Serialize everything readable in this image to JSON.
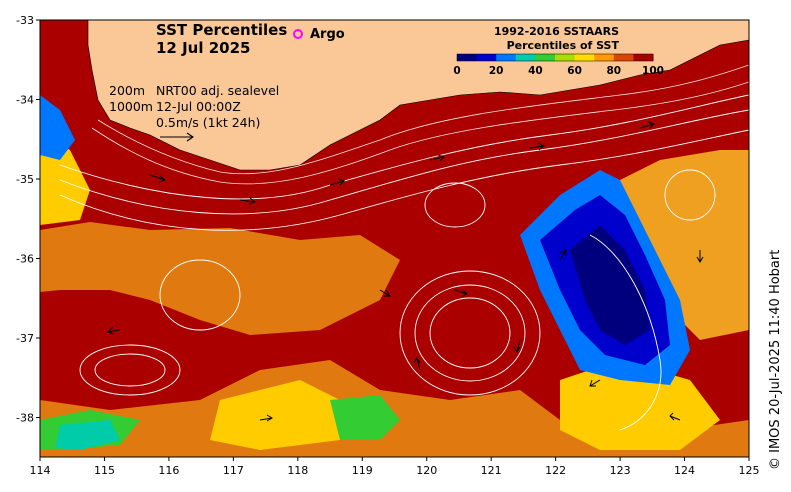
{
  "title": {
    "line1": "SST Percentiles",
    "line2": "12 Jul 2025"
  },
  "argo_legend": {
    "label": "Argo",
    "color": "#ff00ff"
  },
  "colorbar": {
    "title_line1": "1992-2016 SSTAARS",
    "title_line2": "Percentiles of SST",
    "ticks": [
      "0",
      "20",
      "40",
      "60",
      "80",
      "100"
    ],
    "colors": [
      "#00007f",
      "#0000cc",
      "#0077ff",
      "#00ccaa",
      "#33cc33",
      "#aadd00",
      "#ffdd00",
      "#ff9900",
      "#dd4400",
      "#aa0000"
    ]
  },
  "annotation": {
    "depth_200": "200m",
    "depth_1000": "1000m",
    "sealevel": "NRT00 adj. sealevel",
    "time": "12-Jul 00:00Z",
    "scale": "0.5m/s (1kt 24h)"
  },
  "x_ticks": [
    "114",
    "115",
    "116",
    "117",
    "118",
    "119",
    "120",
    "121",
    "122",
    "123",
    "124",
    "125"
  ],
  "y_ticks": [
    "-33",
    "-34",
    "-35",
    "-36",
    "-37",
    "-38"
  ],
  "credit": "© IMOS 20-Jul-2025 11:40 Hobart",
  "colors": {
    "land": "#fac896",
    "warm": "#aa0000",
    "cold": "#00007f"
  }
}
